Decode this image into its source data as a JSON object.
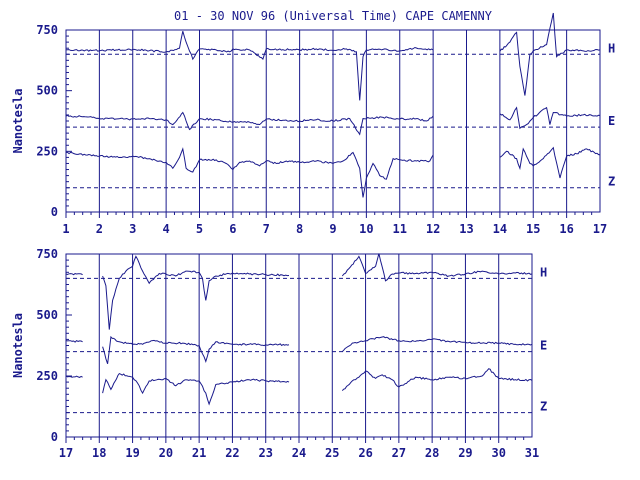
{
  "chart_data": [
    {
      "type": "line",
      "title": "01 - 30 NOV 96 (Universal Time) CAPE CAMENNY",
      "ylabel": "Nanotesla",
      "ylim": [
        0,
        750
      ],
      "yticks": [
        0,
        250,
        500,
        750
      ],
      "xlim": [
        1,
        17
      ],
      "xticks": [
        "1",
        "2",
        "3",
        "4",
        "5",
        "6",
        "7",
        "8",
        "9",
        "10",
        "11",
        "12",
        "13",
        "14",
        "15",
        "16",
        "17"
      ],
      "baselines": [
        {
          "name": "H",
          "value": 650
        },
        {
          "name": "E",
          "value": 350
        },
        {
          "name": "Z",
          "value": 100
        }
      ],
      "gaps": [
        [
          12.0,
          14.0
        ]
      ],
      "series": [
        {
          "name": "H",
          "points": [
            [
              1,
              668
            ],
            [
              2,
              665
            ],
            [
              3,
              670
            ],
            [
              4,
              660
            ],
            [
              4.4,
              675
            ],
            [
              4.5,
              745
            ],
            [
              4.6,
              700
            ],
            [
              4.8,
              630
            ],
            [
              5,
              672
            ],
            [
              5.5,
              668
            ],
            [
              5.9,
              660
            ],
            [
              6,
              672
            ],
            [
              6.5,
              668
            ],
            [
              6.9,
              630
            ],
            [
              7,
              672
            ],
            [
              8,
              668
            ],
            [
              8.5,
              672
            ],
            [
              9,
              666
            ],
            [
              9.4,
              672
            ],
            [
              9.7,
              660
            ],
            [
              9.8,
              460
            ],
            [
              9.9,
              640
            ],
            [
              10,
              668
            ],
            [
              10.5,
              670
            ],
            [
              11,
              664
            ],
            [
              11.5,
              676
            ],
            [
              12,
              668
            ],
            [
              14,
              662
            ],
            [
              14.3,
              700
            ],
            [
              14.5,
              740
            ],
            [
              14.6,
              600
            ],
            [
              14.75,
              480
            ],
            [
              14.9,
              650
            ],
            [
              15,
              664
            ],
            [
              15.4,
              690
            ],
            [
              15.6,
              820
            ],
            [
              15.7,
              640
            ],
            [
              16,
              668
            ],
            [
              16.5,
              664
            ],
            [
              17,
              668
            ]
          ]
        },
        {
          "name": "E",
          "points": [
            [
              1,
              395
            ],
            [
              1.7,
              392
            ],
            [
              2,
              385
            ],
            [
              3,
              383
            ],
            [
              3.5,
              385
            ],
            [
              4,
              380
            ],
            [
              4.2,
              360
            ],
            [
              4.5,
              410
            ],
            [
              4.7,
              340
            ],
            [
              5,
              385
            ],
            [
              5.5,
              380
            ],
            [
              6,
              370
            ],
            [
              6.5,
              370
            ],
            [
              6.8,
              360
            ],
            [
              7,
              383
            ],
            [
              7.5,
              378
            ],
            [
              8,
              375
            ],
            [
              8.5,
              380
            ],
            [
              9,
              375
            ],
            [
              9.5,
              385
            ],
            [
              9.8,
              320
            ],
            [
              9.9,
              385
            ],
            [
              10.5,
              390
            ],
            [
              11,
              383
            ],
            [
              11.5,
              385
            ],
            [
              11.8,
              375
            ],
            [
              12,
              395
            ],
            [
              14,
              405
            ],
            [
              14.3,
              380
            ],
            [
              14.5,
              430
            ],
            [
              14.6,
              345
            ],
            [
              14.8,
              360
            ],
            [
              15,
              390
            ],
            [
              15.4,
              430
            ],
            [
              15.5,
              360
            ],
            [
              15.6,
              410
            ],
            [
              16,
              395
            ],
            [
              16.5,
              400
            ],
            [
              17,
              398
            ]
          ]
        },
        {
          "name": "Z",
          "points": [
            [
              1,
              245
            ],
            [
              2,
              230
            ],
            [
              2.8,
              225
            ],
            [
              3,
              230
            ],
            [
              3.5,
              220
            ],
            [
              3.8,
              210
            ],
            [
              4,
              205
            ],
            [
              4.2,
              180
            ],
            [
              4.4,
              225
            ],
            [
              4.5,
              260
            ],
            [
              4.6,
              180
            ],
            [
              4.8,
              165
            ],
            [
              5,
              215
            ],
            [
              5.5,
              215
            ],
            [
              5.8,
              200
            ],
            [
              6,
              175
            ],
            [
              6.2,
              205
            ],
            [
              6.5,
              210
            ],
            [
              6.8,
              190
            ],
            [
              7,
              210
            ],
            [
              7.3,
              200
            ],
            [
              7.6,
              210
            ],
            [
              8,
              205
            ],
            [
              8.5,
              210
            ],
            [
              9,
              200
            ],
            [
              9.3,
              210
            ],
            [
              9.6,
              245
            ],
            [
              9.8,
              180
            ],
            [
              9.9,
              60
            ],
            [
              10,
              140
            ],
            [
              10.2,
              200
            ],
            [
              10.4,
              150
            ],
            [
              10.6,
              135
            ],
            [
              10.8,
              220
            ],
            [
              11,
              215
            ],
            [
              11.5,
              210
            ],
            [
              11.9,
              210
            ],
            [
              12,
              235
            ],
            [
              14,
              225
            ],
            [
              14.2,
              250
            ],
            [
              14.5,
              220
            ],
            [
              14.6,
              180
            ],
            [
              14.7,
              260
            ],
            [
              14.9,
              200
            ],
            [
              15,
              190
            ],
            [
              15.3,
              220
            ],
            [
              15.6,
              265
            ],
            [
              15.8,
              140
            ],
            [
              16,
              230
            ],
            [
              16.3,
              240
            ],
            [
              16.6,
              260
            ],
            [
              17,
              235
            ]
          ]
        }
      ]
    },
    {
      "type": "line",
      "ylabel": "Nanotesla",
      "ylim": [
        0,
        750
      ],
      "yticks": [
        0,
        250,
        500,
        750
      ],
      "xlim": [
        17,
        31
      ],
      "xticks": [
        "17",
        "18",
        "19",
        "20",
        "21",
        "22",
        "23",
        "24",
        "25",
        "26",
        "27",
        "28",
        "29",
        "30",
        "31"
      ],
      "baselines": [
        {
          "name": "H",
          "value": 650
        },
        {
          "name": "E",
          "value": 350
        },
        {
          "name": "Z",
          "value": 100
        }
      ],
      "gaps": [
        [
          17.5,
          18.1
        ],
        [
          23.7,
          24.0
        ],
        [
          24.2,
          25.3
        ]
      ],
      "series": [
        {
          "name": "H",
          "points": [
            [
              17,
              668
            ],
            [
              17.5,
              665
            ],
            [
              18.1,
              660
            ],
            [
              18.2,
              620
            ],
            [
              18.3,
              440
            ],
            [
              18.4,
              560
            ],
            [
              18.6,
              650
            ],
            [
              18.8,
              680
            ],
            [
              19,
              700
            ],
            [
              19.1,
              740
            ],
            [
              19.3,
              680
            ],
            [
              19.5,
              630
            ],
            [
              19.8,
              670
            ],
            [
              20,
              668
            ],
            [
              20.3,
              660
            ],
            [
              20.6,
              680
            ],
            [
              21,
              675
            ],
            [
              21.1,
              650
            ],
            [
              21.2,
              560
            ],
            [
              21.3,
              640
            ],
            [
              21.5,
              660
            ],
            [
              22,
              672
            ],
            [
              22.5,
              668
            ],
            [
              23,
              666
            ],
            [
              23.5,
              664
            ],
            [
              23.7,
              662
            ],
            [
              25.3,
              660
            ],
            [
              25.5,
              690
            ],
            [
              25.8,
              740
            ],
            [
              26,
              670
            ],
            [
              26.3,
              700
            ],
            [
              26.4,
              752
            ],
            [
              26.6,
              640
            ],
            [
              26.8,
              668
            ],
            [
              27,
              672
            ],
            [
              27.5,
              670
            ],
            [
              28,
              675
            ],
            [
              28.5,
              660
            ],
            [
              29,
              668
            ],
            [
              29.5,
              680
            ],
            [
              30,
              668
            ],
            [
              30.5,
              672
            ],
            [
              31,
              668
            ]
          ]
        },
        {
          "name": "E",
          "points": [
            [
              17,
              395
            ],
            [
              17.5,
              390
            ],
            [
              18.1,
              370
            ],
            [
              18.25,
              300
            ],
            [
              18.35,
              410
            ],
            [
              18.6,
              390
            ],
            [
              19,
              380
            ],
            [
              19.3,
              380
            ],
            [
              19.6,
              395
            ],
            [
              20,
              385
            ],
            [
              20.5,
              385
            ],
            [
              21,
              375
            ],
            [
              21.2,
              310
            ],
            [
              21.3,
              360
            ],
            [
              21.5,
              390
            ],
            [
              22,
              380
            ],
            [
              22.5,
              380
            ],
            [
              23,
              378
            ],
            [
              23.7,
              378
            ],
            [
              24.0,
              370
            ],
            [
              25.3,
              350
            ],
            [
              25.6,
              385
            ],
            [
              26,
              395
            ],
            [
              26.5,
              410
            ],
            [
              27,
              395
            ],
            [
              27.5,
              392
            ],
            [
              28,
              400
            ],
            [
              28.5,
              392
            ],
            [
              29,
              388
            ],
            [
              29.5,
              385
            ],
            [
              30,
              385
            ],
            [
              30.5,
              380
            ],
            [
              31,
              380
            ]
          ]
        },
        {
          "name": "Z",
          "points": [
            [
              17,
              250
            ],
            [
              17.5,
              245
            ],
            [
              18.1,
              180
            ],
            [
              18.2,
              235
            ],
            [
              18.35,
              195
            ],
            [
              18.6,
              260
            ],
            [
              19,
              245
            ],
            [
              19.2,
              210
            ],
            [
              19.3,
              180
            ],
            [
              19.5,
              230
            ],
            [
              20,
              240
            ],
            [
              20.3,
              210
            ],
            [
              20.6,
              235
            ],
            [
              21,
              230
            ],
            [
              21.2,
              180
            ],
            [
              21.3,
              135
            ],
            [
              21.5,
              215
            ],
            [
              22,
              225
            ],
            [
              22.5,
              235
            ],
            [
              23,
              230
            ],
            [
              23.7,
              225
            ],
            [
              24.0,
              230
            ],
            [
              25.3,
              190
            ],
            [
              25.6,
              230
            ],
            [
              25.8,
              245
            ],
            [
              26,
              270
            ],
            [
              26.3,
              240
            ],
            [
              26.5,
              255
            ],
            [
              26.8,
              235
            ],
            [
              27,
              205
            ],
            [
              27.5,
              245
            ],
            [
              28,
              235
            ],
            [
              28.5,
              245
            ],
            [
              29,
              240
            ],
            [
              29.5,
              250
            ],
            [
              29.7,
              280
            ],
            [
              30,
              240
            ],
            [
              30.5,
              235
            ],
            [
              31,
              232
            ]
          ]
        }
      ]
    }
  ]
}
